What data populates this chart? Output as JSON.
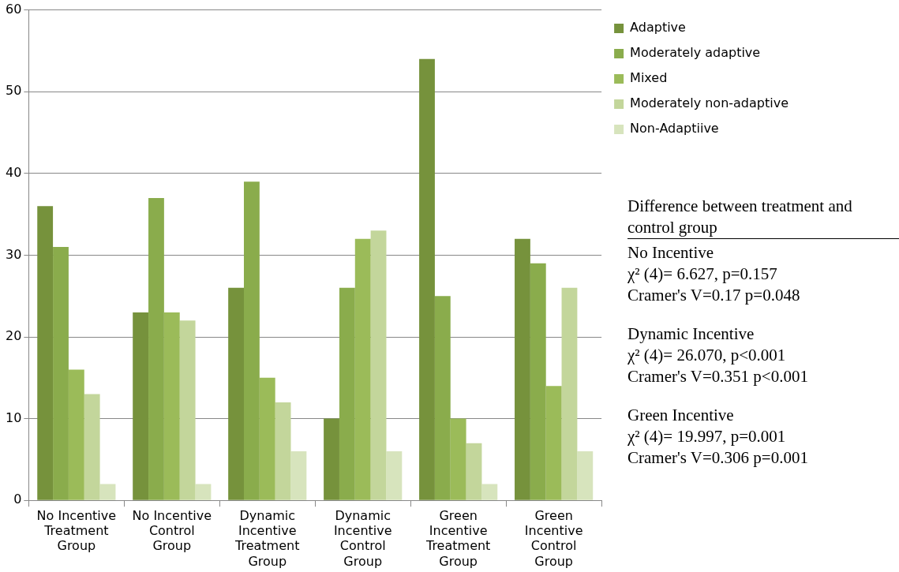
{
  "chart_data": {
    "type": "bar",
    "categories": [
      "No Incentive Treatment Group",
      "No Incentive Control Group",
      "Dynamic Incentive Treatment Group",
      "Dynamic Incentive Control Group",
      "Green Incentive Treatment Group",
      "Green Incentive Control Group"
    ],
    "series": [
      {
        "name": "Adaptive",
        "color": "#76923c",
        "values": [
          36,
          23,
          26,
          10,
          54,
          32
        ]
      },
      {
        "name": "Moderately adaptive",
        "color": "#8aac4c",
        "values": [
          31,
          37,
          39,
          26,
          25,
          29
        ]
      },
      {
        "name": "Mixed",
        "color": "#9bbb59",
        "values": [
          16,
          23,
          15,
          32,
          10,
          14
        ]
      },
      {
        "name": "Moderately non-adaptive",
        "color": "#c3d69b",
        "values": [
          13,
          22,
          12,
          33,
          7,
          26
        ]
      },
      {
        "name": "Non-Adaptiive",
        "color": "#d7e4bd",
        "values": [
          2,
          2,
          6,
          6,
          2,
          6
        ]
      }
    ],
    "ylim": [
      0,
      60
    ],
    "yticks": [
      0,
      10,
      20,
      30,
      40,
      50,
      60
    ],
    "grid": "y",
    "legend": "top right",
    "annotations": [
      "Difference between treatment and control group",
      "No Incentive",
      "χ² (4)= 6.627, p=0.157",
      "Cramer's V=0.17 p=0.048",
      "Dynamic Incentive",
      "χ² (4)= 26.070, p<0.001",
      "Cramer's V=0.351 p<0.001",
      "Green Incentive",
      "χ² (4)= 19.997, p=0.001",
      "Cramer's V=0.306 p=0.001"
    ]
  }
}
